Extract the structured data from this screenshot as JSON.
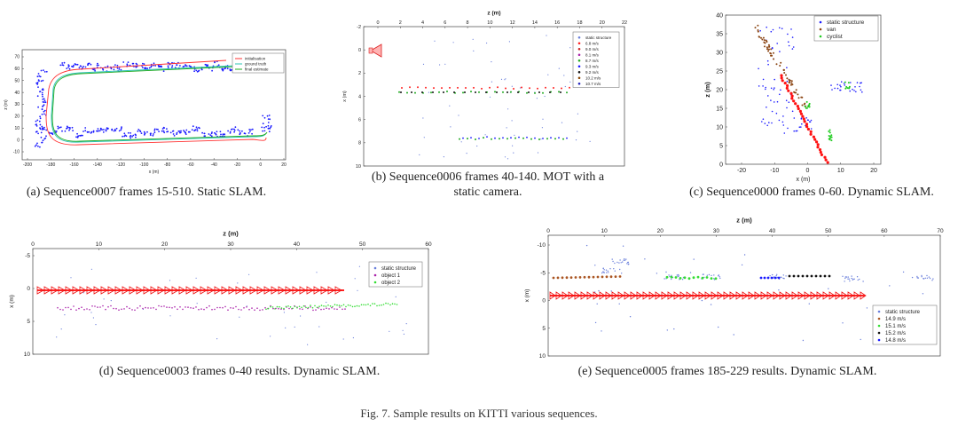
{
  "subfigures": [
    {
      "id": "a",
      "caption": "(a)  Sequence0007 frames 15-510. Static SLAM.",
      "chart_data": {
        "type": "scatter",
        "xlabel": "x (m)",
        "ylabel": "z (m)",
        "xlim": [
          -200,
          30
        ],
        "ylim": [
          -15,
          80
        ],
        "xticks": [
          "-200",
          "-180",
          "-160",
          "-140",
          "-120",
          "-100",
          "-80",
          "-60",
          "-40",
          "-20",
          "0",
          "20"
        ],
        "yticks": [
          "70",
          "60",
          "50",
          "40",
          "30",
          "20",
          "10",
          "0",
          "-10"
        ],
        "legend": [
          "initialisation",
          "ground truth",
          "final estimate"
        ],
        "colors": {
          "initialisation": "#ff3333",
          "ground_truth": "#2ec4b6",
          "final_estimate": "#22aa22",
          "landmarks": "#1a1aff"
        }
      }
    },
    {
      "id": "b",
      "caption_lines": [
        "(b)  Sequence0006 frames 40-140. MOT with a",
        "static camera."
      ],
      "chart_data": {
        "type": "scatter",
        "xlabel": "z (m)",
        "ylabel": "x (m)",
        "xlim": [
          -2,
          22
        ],
        "ylim": [
          -2,
          10
        ],
        "xticks": [
          "0",
          "2",
          "4",
          "6",
          "8",
          "10",
          "12",
          "14",
          "16",
          "18",
          "20",
          "22"
        ],
        "yticks": [
          "-2",
          "0",
          "2",
          "4",
          "6",
          "8",
          "10"
        ],
        "legend": [
          "static structure",
          "6.8 m/s",
          "9.0 m/s",
          "8.1 m/s",
          "8.7 m/s",
          "9.3 m/s",
          "9.2 m/s",
          "10.2 m/s",
          "10.7 m/s"
        ],
        "legend_colors": [
          "#6a7fdb",
          "#ff2222",
          "#cc2222",
          "#aa22aa",
          "#22aa22",
          "#1a1aff",
          "#111111",
          "#884400",
          "#2222bb"
        ]
      }
    },
    {
      "id": "c",
      "caption": "(c)  Sequence0000 frames 0-60. Dynamic SLAM.",
      "chart_data": {
        "type": "scatter",
        "xlabel": "x (m)",
        "ylabel": "z (m)",
        "xlim": [
          -25,
          22
        ],
        "ylim": [
          0,
          40
        ],
        "xticks": [
          "-20",
          "-10",
          "0",
          "10",
          "20"
        ],
        "yticks": [
          "40",
          "35",
          "30",
          "25",
          "20",
          "15",
          "10",
          "5",
          "0"
        ],
        "legend": [
          "static structure",
          "van",
          "cyclist"
        ],
        "legend_colors": [
          "#1a1aff",
          "#8b4513",
          "#22cc22"
        ]
      }
    },
    {
      "id": "d",
      "caption": "(d)  Sequence0003 frames 0-40 results. Dynamic SLAM.",
      "chart_data": {
        "type": "scatter",
        "xlabel": "z (m)",
        "ylabel": "x (m)",
        "xlim": [
          0,
          60
        ],
        "ylim": [
          -5,
          10
        ],
        "xticks": [
          "0",
          "10",
          "20",
          "30",
          "40",
          "50",
          "60"
        ],
        "yticks": [
          "-5",
          "0",
          "5",
          "10"
        ],
        "legend": [
          "static structure",
          "object 1",
          "object 2"
        ],
        "legend_colors": [
          "#6a7fdb",
          "#aa22aa",
          "#33dd33"
        ]
      }
    },
    {
      "id": "e",
      "caption": "(e)  Sequence0005 frames 185-229 results. Dynamic SLAM.",
      "chart_data": {
        "type": "scatter",
        "xlabel": "z (m)",
        "ylabel": "x (m)",
        "xlim": [
          0,
          70
        ],
        "ylim": [
          -10,
          10
        ],
        "xticks": [
          "0",
          "10",
          "20",
          "30",
          "40",
          "50",
          "60",
          "70"
        ],
        "yticks": [
          "-10",
          "-5",
          "0",
          "5",
          "10"
        ],
        "legend": [
          "static structure",
          "14.9 m/s",
          "15.1 m/s",
          "15.2 m/s",
          "14.8 m/s"
        ],
        "legend_colors": [
          "#6a7fdb",
          "#aa5522",
          "#33dd33",
          "#111111",
          "#1a1aff"
        ]
      }
    }
  ],
  "figure_caption": "Fig. 7.    Sample results on KITTI various sequences."
}
